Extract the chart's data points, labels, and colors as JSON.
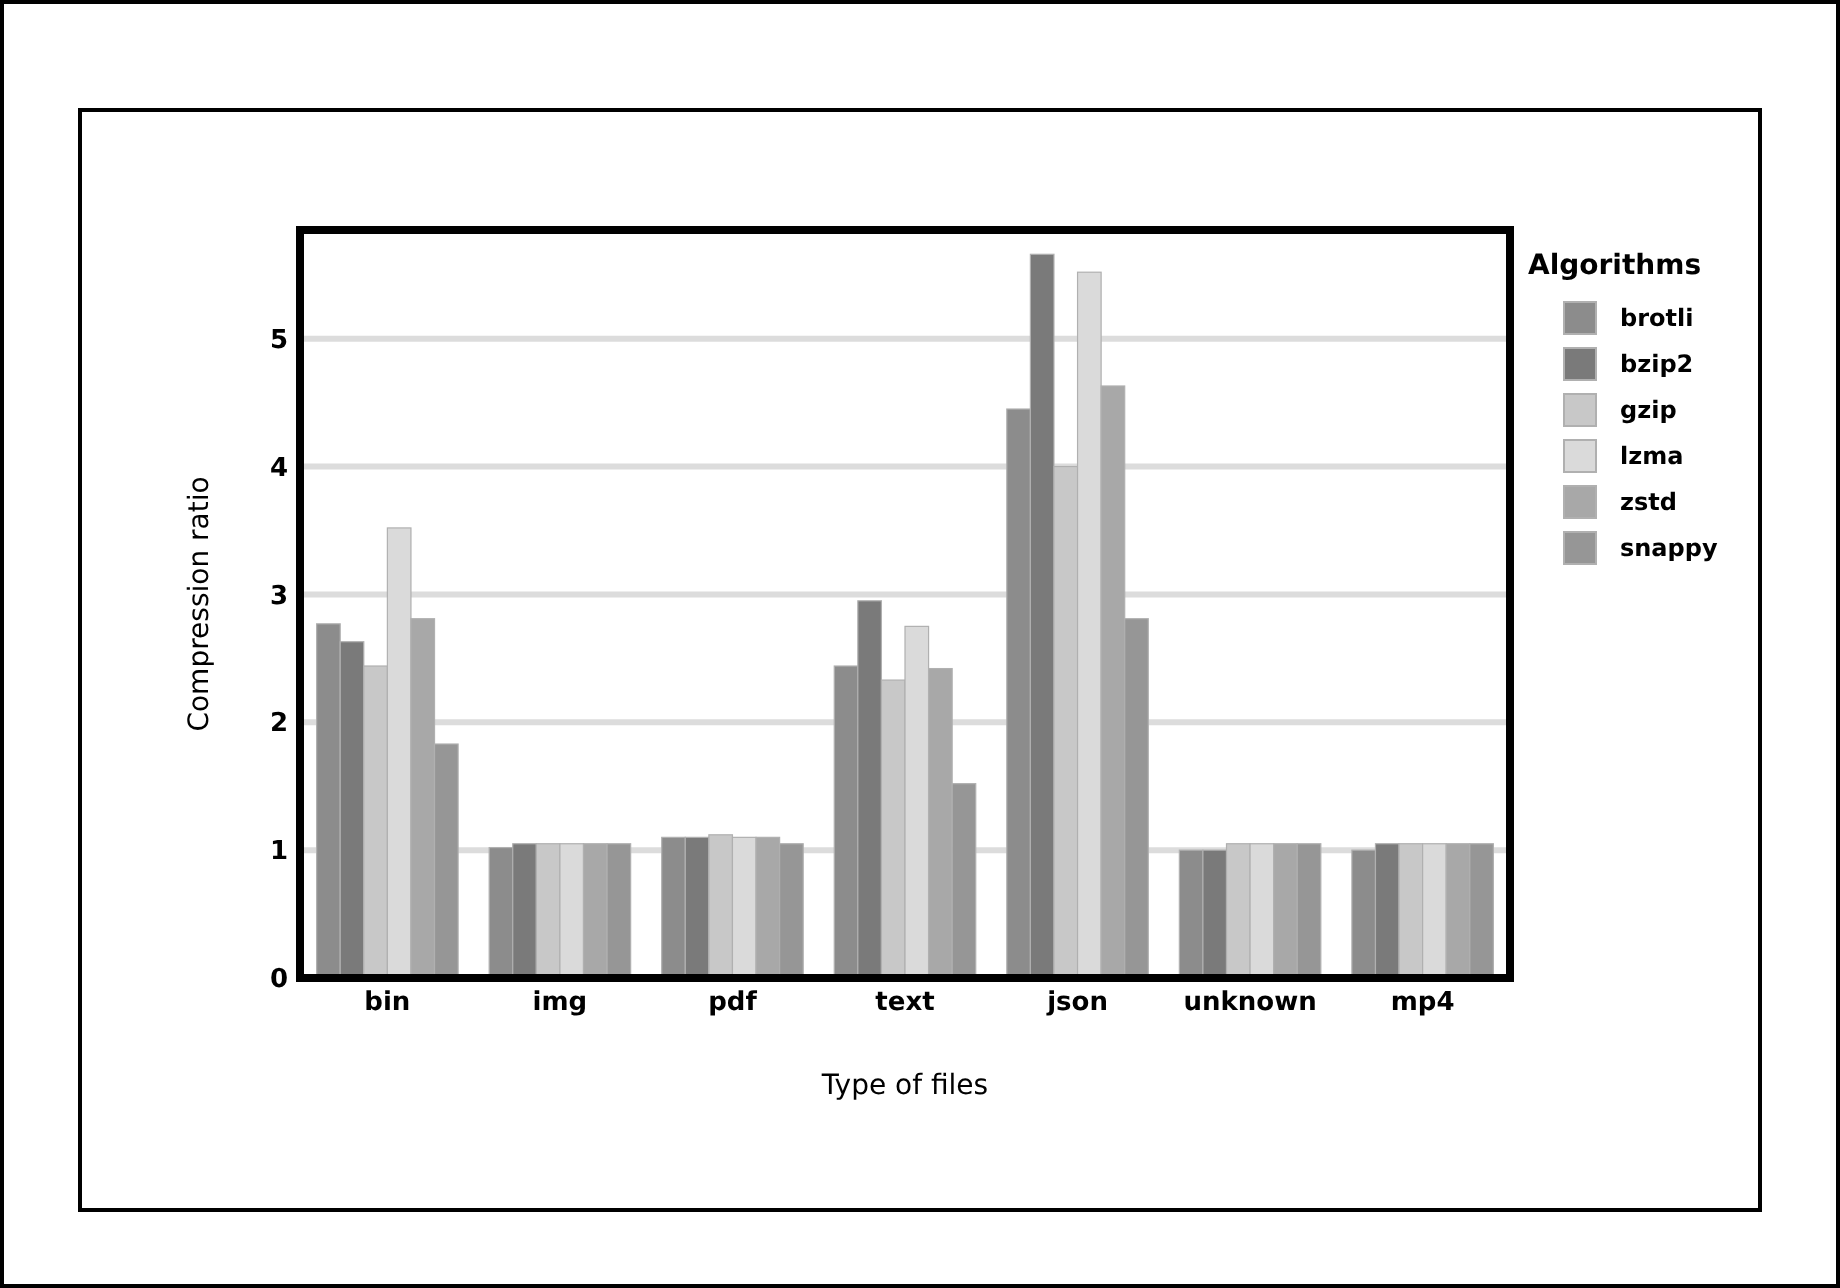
{
  "chart_data": {
    "type": "bar",
    "xlabel": "Type of files",
    "ylabel": "Compression ratio",
    "legend_title": "Algorithms",
    "legend": "right",
    "grid": "y",
    "categories": [
      "bin",
      "img",
      "pdf",
      "text",
      "json",
      "unknown",
      "mp4"
    ],
    "ylim": [
      0,
      5.85
    ],
    "yticks": [
      0,
      1,
      2,
      3,
      4,
      5
    ],
    "series": [
      {
        "name": "brotli",
        "color": "#8c8c8c",
        "values": [
          2.77,
          1.02,
          1.1,
          2.44,
          4.45,
          1.0,
          1.0
        ]
      },
      {
        "name": "bzip2",
        "color": "#7a7a7a",
        "values": [
          2.63,
          1.05,
          1.1,
          2.95,
          5.66,
          1.0,
          1.05
        ]
      },
      {
        "name": "gzip",
        "color": "#c8c8c8",
        "values": [
          2.44,
          1.05,
          1.12,
          2.33,
          4.0,
          1.05,
          1.05
        ]
      },
      {
        "name": "lzma",
        "color": "#dadada",
        "values": [
          3.52,
          1.05,
          1.1,
          2.75,
          5.52,
          1.05,
          1.05
        ]
      },
      {
        "name": "zstd",
        "color": "#a8a8a8",
        "values": [
          2.81,
          1.05,
          1.1,
          2.42,
          4.63,
          1.05,
          1.05
        ]
      },
      {
        "name": "snappy",
        "color": "#969696",
        "values": [
          1.83,
          1.05,
          1.05,
          1.52,
          2.81,
          1.05,
          1.05
        ]
      }
    ]
  }
}
